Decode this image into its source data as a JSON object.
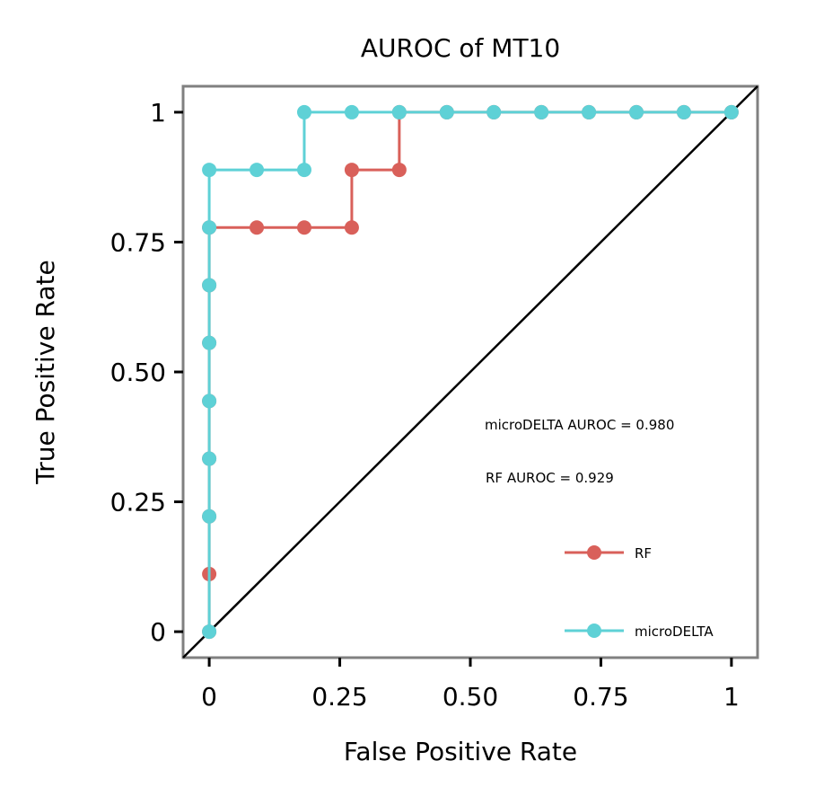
{
  "chart_data": {
    "type": "line",
    "title": "AUROC of MT10",
    "xlabel": "False Positive Rate",
    "ylabel": "True Positive Rate",
    "xlim": [
      -0.05,
      1.05
    ],
    "ylim": [
      -0.05,
      1.05
    ],
    "x_ticks": [
      0,
      0.25,
      0.5,
      0.75,
      1
    ],
    "x_tick_labels": [
      "0",
      "0.25",
      "0.50",
      "0.75",
      "1"
    ],
    "y_ticks": [
      0,
      0.25,
      0.5,
      0.75,
      1
    ],
    "y_tick_labels": [
      "0",
      "0.25",
      "0.50",
      "0.75",
      "1"
    ],
    "grid": false,
    "legend_position": "bottom-right",
    "annotations": [
      "microDELTA AUROC = 0.980",
      "RF AUROC = 0.929"
    ],
    "diagonal": {
      "from": [
        -0.05,
        -0.05
      ],
      "to": [
        1.05,
        1.05
      ],
      "color": "#000000"
    },
    "series": [
      {
        "name": "RF",
        "color": "#d9605a",
        "points": [
          [
            0,
            0
          ],
          [
            0,
            0.111
          ],
          [
            0,
            0.222
          ],
          [
            0,
            0.333
          ],
          [
            0,
            0.444
          ],
          [
            0,
            0.556
          ],
          [
            0,
            0.667
          ],
          [
            0,
            0.778
          ],
          [
            0.091,
            0.778
          ],
          [
            0.182,
            0.778
          ],
          [
            0.273,
            0.778
          ],
          [
            0.273,
            0.889
          ],
          [
            0.364,
            0.889
          ],
          [
            0.364,
            1
          ],
          [
            0.455,
            1
          ],
          [
            0.545,
            1
          ],
          [
            0.636,
            1
          ],
          [
            0.727,
            1
          ],
          [
            0.818,
            1
          ],
          [
            0.909,
            1
          ],
          [
            1,
            1
          ]
        ]
      },
      {
        "name": "microDELTA",
        "color": "#5ed1d6",
        "points": [
          [
            0,
            0
          ],
          [
            0,
            0.222
          ],
          [
            0,
            0.333
          ],
          [
            0,
            0.444
          ],
          [
            0,
            0.556
          ],
          [
            0,
            0.667
          ],
          [
            0,
            0.778
          ],
          [
            0,
            0.889
          ],
          [
            0.091,
            0.889
          ],
          [
            0.182,
            0.889
          ],
          [
            0.182,
            1
          ],
          [
            0.273,
            1
          ],
          [
            0.364,
            1
          ],
          [
            0.455,
            1
          ],
          [
            0.545,
            1
          ],
          [
            0.636,
            1
          ],
          [
            0.727,
            1
          ],
          [
            0.818,
            1
          ],
          [
            0.909,
            1
          ],
          [
            1,
            1
          ]
        ]
      }
    ]
  }
}
